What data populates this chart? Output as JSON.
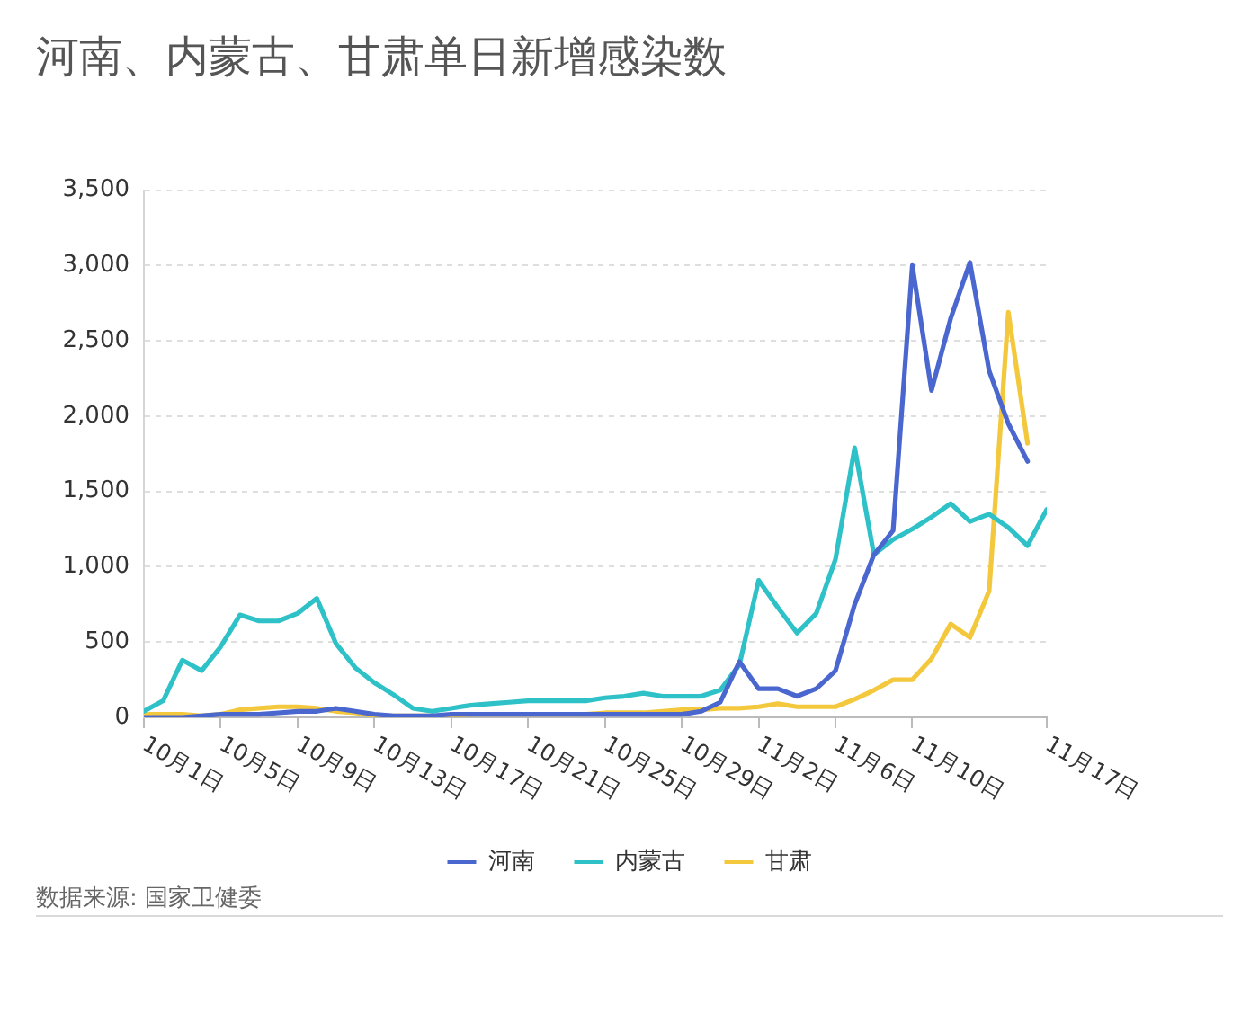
{
  "chart_data": {
    "type": "line",
    "title": "河南、内蒙古、甘肃单日新增感染数",
    "x": [
      "--10-01",
      "--10-02",
      "--10-03",
      "--10-04",
      "--10-05",
      "--10-06",
      "--10-07",
      "--10-08",
      "--10-09",
      "--10-10",
      "--10-11",
      "--10-12",
      "--10-13",
      "--10-14",
      "--10-15",
      "--10-16",
      "--10-17",
      "--10-18",
      "--10-19",
      "--10-20",
      "--10-21",
      "--10-22",
      "--10-23",
      "--10-24",
      "--10-25",
      "--10-26",
      "--10-27",
      "--10-28",
      "--10-29",
      "--10-30",
      "--10-31",
      "--11-01",
      "--11-02",
      "--11-03",
      "--11-04",
      "--11-05",
      "--11-06",
      "--11-07",
      "--11-08",
      "--11-09",
      "--11-10",
      "--11-11",
      "--11-12",
      "--11-13",
      "--11-14",
      "--11-15",
      "--11-16",
      "--11-17"
    ],
    "series": [
      {
        "name": "河南",
        "color": "#4a66cf",
        "values": [
          0,
          0,
          0,
          10,
          20,
          20,
          20,
          30,
          40,
          40,
          60,
          40,
          20,
          10,
          10,
          10,
          20,
          20,
          20,
          20,
          20,
          20,
          20,
          20,
          20,
          20,
          20,
          20,
          20,
          40,
          100,
          370,
          190,
          190,
          140,
          190,
          310,
          750,
          1080,
          1240,
          3000,
          2170,
          2650,
          3020,
          2300,
          1950,
          1700,
          null
        ]
      },
      {
        "name": "内蒙古",
        "color": "#2ec1c7",
        "values": [
          40,
          110,
          380,
          310,
          470,
          680,
          640,
          640,
          690,
          790,
          490,
          330,
          230,
          150,
          60,
          40,
          60,
          80,
          90,
          100,
          110,
          110,
          110,
          110,
          130,
          140,
          160,
          140,
          140,
          140,
          180,
          350,
          910,
          730,
          560,
          690,
          1050,
          1790,
          1080,
          1180,
          1250,
          1330,
          1420,
          1300,
          1350,
          1260,
          1140,
          1380
        ]
      },
      {
        "name": "甘肃",
        "color": "#f4c83c",
        "values": [
          20,
          20,
          20,
          10,
          20,
          50,
          60,
          70,
          70,
          60,
          40,
          30,
          10,
          10,
          10,
          10,
          10,
          20,
          20,
          20,
          20,
          20,
          20,
          20,
          30,
          30,
          30,
          40,
          50,
          50,
          60,
          60,
          70,
          90,
          70,
          70,
          70,
          120,
          180,
          250,
          250,
          390,
          620,
          530,
          840,
          2690,
          1820,
          null
        ]
      }
    ],
    "xlim": [
      "--10-01",
      "--11-17"
    ],
    "xticks": [
      {
        "value": "--10-01",
        "label": "10月1日"
      },
      {
        "value": "--10-05",
        "label": "10月5日"
      },
      {
        "value": "--10-09",
        "label": "10月9日"
      },
      {
        "value": "--10-13",
        "label": "10月13日"
      },
      {
        "value": "--10-17",
        "label": "10月17日"
      },
      {
        "value": "--10-21",
        "label": "10月21日"
      },
      {
        "value": "--10-25",
        "label": "10月25日"
      },
      {
        "value": "--10-29",
        "label": "10月29日"
      },
      {
        "value": "--11-02",
        "label": "11月2日"
      },
      {
        "value": "--11-06",
        "label": "11月6日"
      },
      {
        "value": "--11-10",
        "label": "11月10日"
      },
      {
        "value": "--11-17",
        "label": "11月17日"
      }
    ],
    "ylim": [
      0,
      3500
    ],
    "yticks": [
      0,
      500,
      {
        "value": 1000,
        "label": "1,000"
      },
      {
        "value": 1500,
        "label": "1,500"
      },
      {
        "value": 2000,
        "label": "2,000"
      },
      {
        "value": 2500,
        "label": "2,500"
      },
      {
        "value": 3000,
        "label": "3,000"
      },
      {
        "value": 3500,
        "label": "3,500"
      }
    ],
    "grid": "y",
    "legend": "bottom",
    "annotations": [
      "数据来源: 国家卫健委"
    ]
  }
}
